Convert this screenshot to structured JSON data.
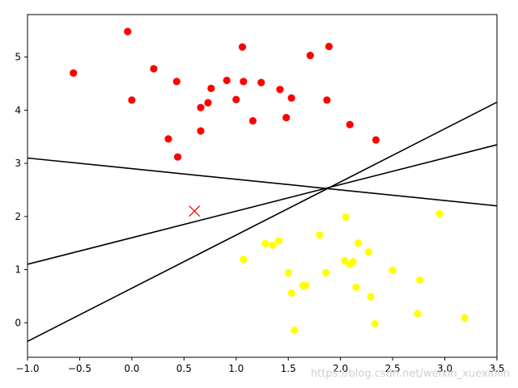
{
  "chart_data": {
    "type": "scatter",
    "title": "",
    "xlabel": "",
    "ylabel": "",
    "xlim": [
      -1.0,
      3.5
    ],
    "ylim": [
      -0.65,
      5.8
    ],
    "x_ticks": [
      -1.0,
      -0.5,
      0.0,
      0.5,
      1.0,
      1.5,
      2.0,
      2.5,
      3.0,
      3.5
    ],
    "x_tick_labels": [
      "−1.0",
      "−0.5",
      "0.0",
      "0.5",
      "1.0",
      "1.5",
      "2.0",
      "2.5",
      "3.0",
      "3.5"
    ],
    "y_ticks": [
      0,
      1,
      2,
      3,
      4,
      5
    ],
    "y_tick_labels": [
      "0",
      "1",
      "2",
      "3",
      "4",
      "5"
    ],
    "grid": false,
    "series": [
      {
        "color": "#ff0000",
        "marker": "circle",
        "points": [
          [
            -0.04,
            5.48
          ],
          [
            -0.56,
            4.7
          ],
          [
            0.21,
            4.78
          ],
          [
            0.0,
            4.19
          ],
          [
            0.43,
            4.54
          ],
          [
            0.35,
            3.46
          ],
          [
            0.44,
            3.12
          ],
          [
            0.66,
            4.05
          ],
          [
            0.66,
            3.61
          ],
          [
            0.73,
            4.14
          ],
          [
            0.76,
            4.41
          ],
          [
            0.91,
            4.56
          ],
          [
            1.0,
            4.2
          ],
          [
            1.06,
            5.19
          ],
          [
            1.07,
            4.54
          ],
          [
            1.16,
            3.8
          ],
          [
            1.24,
            4.52
          ],
          [
            1.42,
            4.39
          ],
          [
            1.48,
            3.86
          ],
          [
            1.53,
            4.23
          ],
          [
            1.71,
            5.03
          ],
          [
            1.87,
            4.19
          ],
          [
            1.89,
            5.2
          ],
          [
            2.09,
            3.73
          ],
          [
            2.34,
            3.44
          ]
        ]
      },
      {
        "color": "#ffff00",
        "marker": "circle",
        "points": [
          [
            1.07,
            1.19
          ],
          [
            1.28,
            1.49
          ],
          [
            1.35,
            1.46
          ],
          [
            1.41,
            1.54
          ],
          [
            1.5,
            0.94
          ],
          [
            1.53,
            0.56
          ],
          [
            1.56,
            -0.14
          ],
          [
            1.64,
            0.7
          ],
          [
            1.67,
            0.7
          ],
          [
            1.8,
            1.65
          ],
          [
            1.86,
            0.94
          ],
          [
            2.04,
            1.17
          ],
          [
            2.05,
            1.99
          ],
          [
            2.09,
            1.1
          ],
          [
            2.12,
            1.15
          ],
          [
            2.15,
            0.67
          ],
          [
            2.17,
            1.5
          ],
          [
            2.27,
            1.33
          ],
          [
            2.29,
            0.49
          ],
          [
            2.33,
            -0.02
          ],
          [
            2.5,
            0.99
          ],
          [
            2.74,
            0.17
          ],
          [
            2.76,
            0.8
          ],
          [
            2.95,
            2.05
          ],
          [
            3.19,
            0.09
          ]
        ]
      }
    ],
    "new_point": {
      "x": 0.6,
      "y": 2.1,
      "marker": "x",
      "color": "#ff0000"
    },
    "lines": [
      {
        "x1": -1.0,
        "y1": 3.1,
        "x2": 3.5,
        "y2": 2.2,
        "color": "#000000"
      },
      {
        "x1": -1.0,
        "y1": 1.1,
        "x2": 3.5,
        "y2": 3.35,
        "color": "#000000"
      },
      {
        "x1": -1.0,
        "y1": -0.35,
        "x2": 3.5,
        "y2": 4.15,
        "color": "#000000"
      }
    ]
  },
  "watermark": "https://blog.csdn.net/weixin_xuexinlin"
}
